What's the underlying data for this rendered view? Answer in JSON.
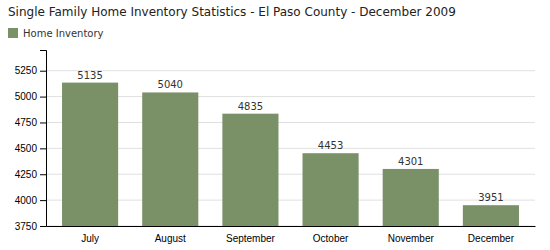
{
  "chart_data": {
    "type": "bar",
    "title": "Single Family Home Inventory Statistics - El Paso County - December 2009",
    "categories": [
      "July",
      "August",
      "September",
      "October",
      "November",
      "December"
    ],
    "series": [
      {
        "name": "Home Inventory",
        "color": "#7a9168",
        "values": [
          5135,
          5040,
          4835,
          4453,
          4301,
          3951
        ]
      }
    ],
    "ylim": [
      3750,
      5450
    ],
    "yticks": [
      3750,
      4000,
      4250,
      4500,
      4750,
      5000,
      5250
    ],
    "grid": true,
    "legend": "top-left",
    "data_labels": true
  }
}
